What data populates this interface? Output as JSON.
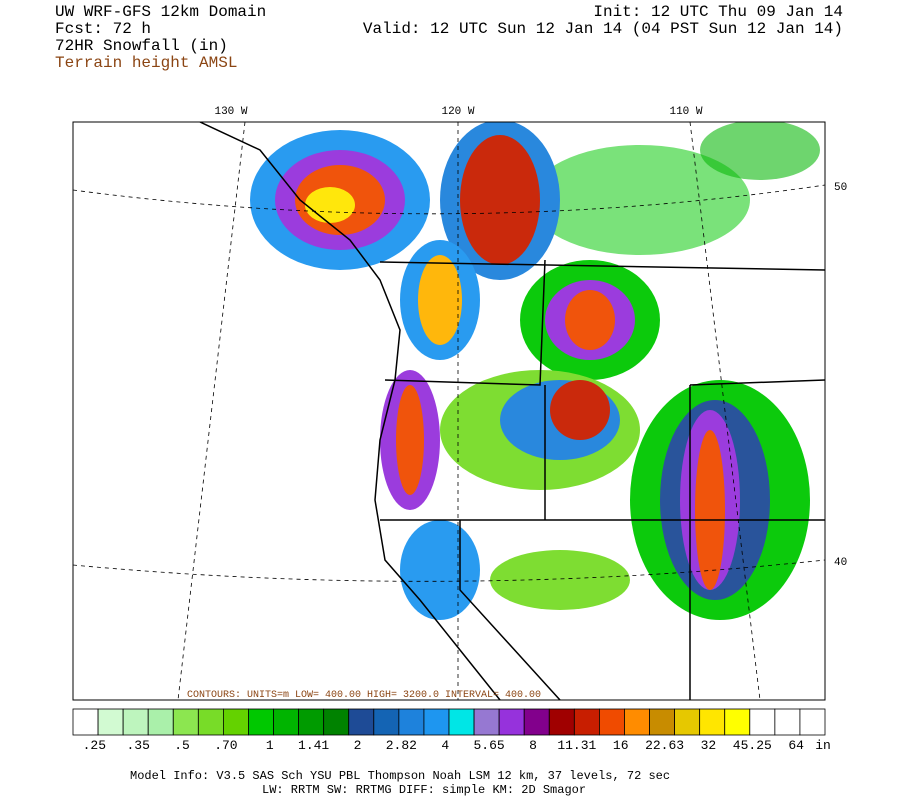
{
  "header": {
    "left": [
      "UW WRF-GFS 12km Domain",
      "Fcst:   72 h",
      "72HR Snowfall (in)"
    ],
    "terrain": "Terrain height AMSL",
    "right": [
      "Init: 12 UTC Thu 09 Jan 14",
      "Valid: 12 UTC Sun 12 Jan 14 (04 PST Sun 12 Jan 14)"
    ]
  },
  "map": {
    "lon_labels": [
      "130 W",
      "120 W",
      "110 W"
    ],
    "lat_labels": [
      "50",
      "40"
    ],
    "contour_note": "CONTOURS:  UNITS=m    LOW=  400.00    HIGH=  3200.0    INTERVAL=  400.00"
  },
  "colorbar": {
    "colors": [
      "#ffffff",
      "#d2fad2",
      "#bef5be",
      "#aaf0aa",
      "#8ce650",
      "#78dc28",
      "#64d200",
      "#00c800",
      "#00b400",
      "#009b00",
      "#008200",
      "#1e4b96",
      "#1464b4",
      "#1e82dc",
      "#1e96f0",
      "#00e6e6",
      "#9678d2",
      "#9632dc",
      "#82008c",
      "#a00000",
      "#c81e00",
      "#f04b00",
      "#ff8c00",
      "#c88c00",
      "#e6c800",
      "#ffe600",
      "#ffff00",
      "#ffffff",
      "#ffffff",
      "#ffffff"
    ],
    "labels": [
      ".25",
      ".35",
      ".5",
      ".70",
      "1",
      "1.41",
      "2",
      "2.82",
      "4",
      "5.65",
      "8",
      "11.31",
      "16",
      "22.63",
      "32",
      "45.25",
      "64"
    ],
    "unit": "in"
  },
  "footer": [
    "Model Info: V3.5     SAS Sch YSU PBL  Thompson    Noah LSM  12 km,   37 levels,   72 sec",
    "LW: RRTM SW: RRTMG   DIFF: simple KM: 2D Smagor"
  ]
}
